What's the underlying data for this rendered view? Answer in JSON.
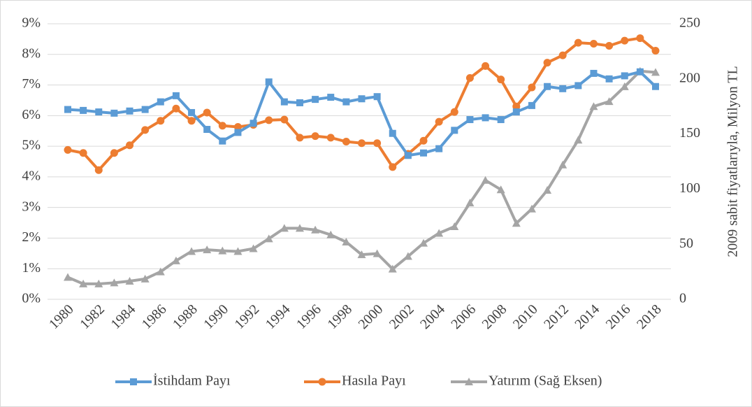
{
  "chart_data": {
    "type": "line",
    "y2_label": "2009 sabit fiyatlarıyla, Milyon TL",
    "x": [
      1980,
      1981,
      1982,
      1983,
      1984,
      1985,
      1986,
      1987,
      1988,
      1989,
      1990,
      1991,
      1992,
      1993,
      1994,
      1995,
      1996,
      1997,
      1998,
      1999,
      2000,
      2001,
      2002,
      2003,
      2004,
      2005,
      2006,
      2007,
      2008,
      2009,
      2010,
      2011,
      2012,
      2013,
      2014,
      2015,
      2016,
      2017,
      2018
    ],
    "xlim": [
      1980,
      2018
    ],
    "xticks": [
      1980,
      1982,
      1984,
      1986,
      1988,
      1990,
      1992,
      1994,
      1996,
      1998,
      2000,
      2002,
      2004,
      2006,
      2008,
      2010,
      2012,
      2014,
      2016,
      2018
    ],
    "ylim": [
      0,
      9
    ],
    "yticks": [
      {
        "value": 0,
        "label": "0%"
      },
      {
        "value": 1,
        "label": "1%"
      },
      {
        "value": 2,
        "label": "2%"
      },
      {
        "value": 3,
        "label": "3%"
      },
      {
        "value": 4,
        "label": "4%"
      },
      {
        "value": 5,
        "label": "5%"
      },
      {
        "value": 6,
        "label": "6%"
      },
      {
        "value": 7,
        "label": "7%"
      },
      {
        "value": 8,
        "label": "8%"
      },
      {
        "value": 9,
        "label": "9%"
      }
    ],
    "y2lim": [
      0,
      250
    ],
    "y2ticks": [
      0,
      50,
      100,
      150,
      200,
      250
    ],
    "grid": true,
    "legend": "bottom",
    "series": [
      {
        "name": "İstihdam Payı",
        "color": "#5b9bd5",
        "marker": "square",
        "values": [
          6.2,
          6.17,
          6.12,
          6.08,
          6.15,
          6.2,
          6.45,
          6.65,
          6.1,
          5.55,
          5.17,
          5.45,
          5.75,
          7.1,
          6.45,
          6.42,
          6.53,
          6.6,
          6.45,
          6.55,
          6.62,
          5.42,
          4.7,
          4.78,
          4.92,
          5.52,
          5.87,
          5.93,
          5.87,
          6.12,
          6.33,
          6.95,
          6.88,
          6.98,
          7.38,
          7.2,
          7.3,
          7.43,
          6.95
        ]
      },
      {
        "name": "Hasıla Payı",
        "color": "#ed7d31",
        "marker": "circle",
        "values": [
          4.88,
          4.78,
          4.22,
          4.78,
          5.03,
          5.53,
          5.83,
          6.23,
          5.83,
          6.1,
          5.67,
          5.63,
          5.7,
          5.85,
          5.87,
          5.28,
          5.33,
          5.28,
          5.15,
          5.1,
          5.1,
          4.32,
          4.75,
          5.18,
          5.8,
          6.12,
          7.23,
          7.62,
          7.18,
          6.3,
          6.92,
          7.73,
          7.97,
          8.38,
          8.35,
          8.28,
          8.45,
          8.53,
          8.12
        ]
      },
      {
        "name": "Yatırım (Sağ Eksen)",
        "color": "#a5a5a5",
        "marker": "triangle",
        "axis": "y2",
        "values": [
          20,
          14,
          14,
          15,
          16.5,
          18.5,
          25,
          35,
          43.5,
          45,
          44,
          43.5,
          46,
          55,
          64.5,
          64.5,
          63,
          58.5,
          52,
          40.5,
          41.5,
          27.5,
          39,
          51,
          60,
          66,
          87.5,
          108,
          99.5,
          69,
          82,
          99,
          122,
          144.5,
          175,
          179.5,
          193,
          207,
          206
        ]
      }
    ]
  }
}
